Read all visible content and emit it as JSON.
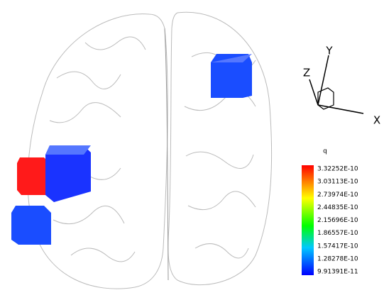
{
  "axes": {
    "x": "X",
    "y": "Y",
    "z": "Z"
  },
  "legend": {
    "title": "q",
    "labels": [
      "3.32252E-10",
      "3.03113E-10",
      "2.73974E-10",
      "2.44835E-10",
      "2.15696E-10",
      "1.86557E-10",
      "1.57417E-10",
      "1.28278E-10",
      "9.91391E-11"
    ]
  }
}
